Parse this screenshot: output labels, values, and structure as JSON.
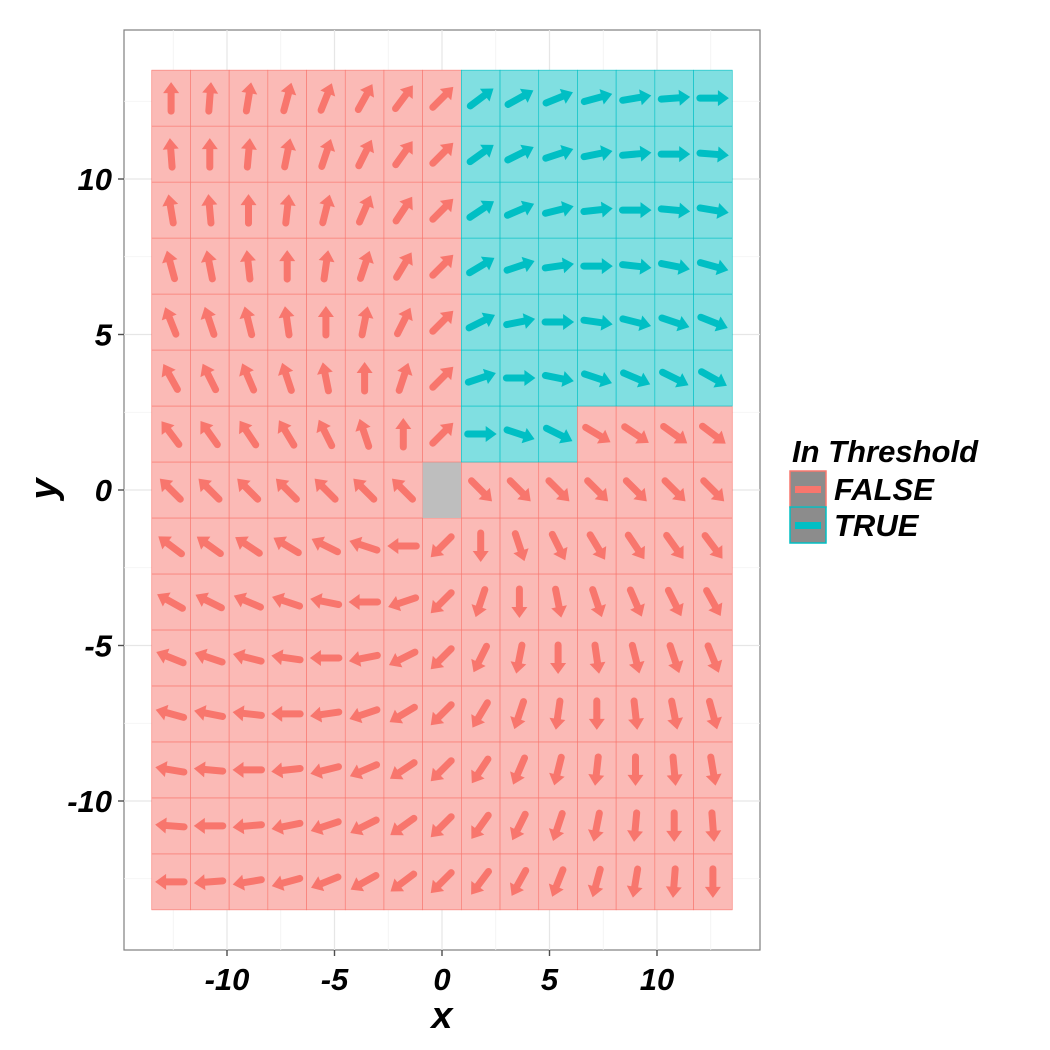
{
  "chart_data": {
    "type": "heatmap",
    "subtype": "vector-field",
    "title": "",
    "xlabel": "x",
    "ylabel": "y",
    "xlim": [
      -14.5,
      14.5
    ],
    "ylim": [
      -14.5,
      14.5
    ],
    "x_ticks": [
      -10,
      -5,
      0,
      5,
      10
    ],
    "y_ticks": [
      -10,
      -5,
      0,
      5,
      10
    ],
    "x_tick_labels": [
      "-10",
      "-5",
      "0",
      "5",
      "10"
    ],
    "y_tick_labels": [
      "-10",
      "-5",
      "0",
      "5",
      "10"
    ],
    "grid": true,
    "legend": {
      "title": "In Threshold",
      "placement": "right",
      "entries": [
        {
          "label": "FALSE",
          "color": "#F8766D"
        },
        {
          "label": "TRUE",
          "color": "#00BFC4"
        }
      ]
    },
    "grid_x_centers": [
      -12.6,
      -10.8,
      -9.0,
      -7.2,
      -5.4,
      -3.6,
      -1.8,
      0,
      1.8,
      3.6,
      5.4,
      7.2,
      9.0,
      10.8,
      12.6
    ],
    "grid_y_centers": [
      -12.6,
      -10.8,
      -9.0,
      -7.2,
      -5.4,
      -3.6,
      -1.8,
      0,
      1.8,
      3.6,
      5.4,
      7.2,
      9.0,
      10.8,
      12.6
    ],
    "field": "arrows point along the direction of the vector (x + y, y - x) at each cell",
    "in_threshold_true_cells": [
      {
        "x_min": 3.6,
        "y_min": 7.2
      },
      {
        "x_min": 1.8,
        "y_min": 3.6
      },
      {
        "x_min": 1.8,
        "y_min": 1.8,
        "x_max": 5.4
      }
    ],
    "undefined_cell": {
      "x": 0,
      "y": 0,
      "color": "#BEBEBE"
    }
  }
}
